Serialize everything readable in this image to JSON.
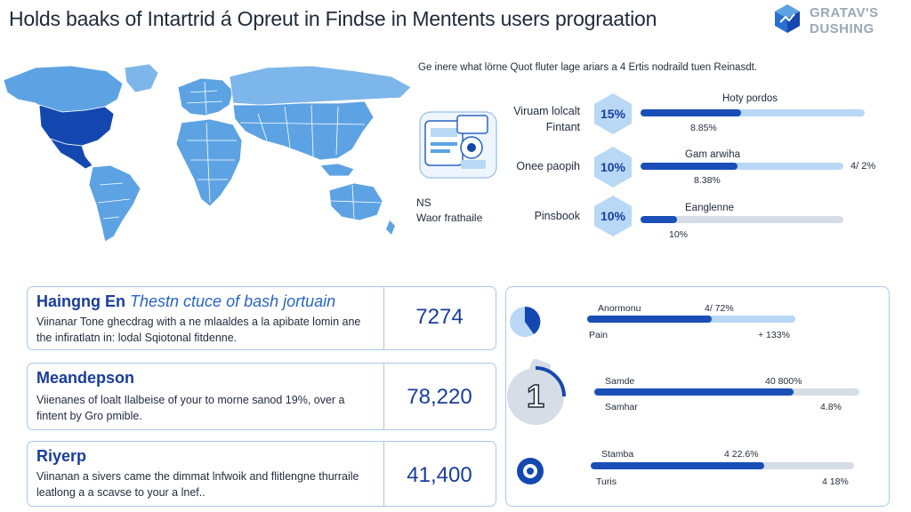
{
  "header": {
    "title": "Holds baaks of Intartrid á Opreut in Findse in Mentents users prograation",
    "logo_line1": "GRATAV'S",
    "logo_line2": "DUSHING"
  },
  "intro_text": "Ge inere what lörne Quot fluter lage ariars a 4 Ertis nodraild tuen Reinasdt.",
  "left_caption": {
    "line1": "NS",
    "line2": "Waor frathaile"
  },
  "stats": [
    {
      "label_line1": "Viruam lolcalt",
      "label_line2": "Fintant",
      "pct": "15%",
      "bar_title": "Hoty pordos",
      "bar_value": "8.85%",
      "fill": 0.45,
      "side": ""
    },
    {
      "label_line1": "Onee paopih",
      "label_line2": "",
      "pct": "10%",
      "bar_title": "Gam arwiha",
      "bar_value": "8.38%",
      "fill": 0.48,
      "side": "4/ 2%"
    },
    {
      "label_line1": "Pinsbook",
      "label_line2": "",
      "pct": "10%",
      "bar_title": "Eanglenne",
      "bar_value": "10%",
      "fill": 0.18,
      "side": ""
    }
  ],
  "cards": [
    {
      "title": "Haingng En",
      "title_italic": "Thestn ctuce of bash jortuain",
      "line1": "Viinanar Tone ghecdrag with a ne mlaaldes a la apibate lomin ane",
      "line2": "the infiratlatn in: lodal Sqiotonal fitdenne.",
      "number": "7274"
    },
    {
      "title": "Meandepson",
      "title_italic": "",
      "line1": "Viienanes of loalt Ilalbeise of your to morne sanod 19%, over a",
      "line2": "fintent by Gro pmible.",
      "number": "78,220"
    },
    {
      "title": "Riyerp",
      "title_italic": "",
      "line1": "Viinanan a sivers came the dimmat lnfwoik and flitlengne thurraile",
      "line2": "leatlong a a scavse to your a lnef..",
      "number": "41,400"
    }
  ],
  "panel": {
    "rows": [
      {
        "top_label": "Anormonu",
        "top_value": "4/ 72%",
        "bottom_label": "Pain",
        "bottom_value": "+ 133%",
        "fill": 0.6
      },
      {
        "top_label": "Samde",
        "top_value": "40 800%",
        "bottom_label": "Samhar",
        "bottom_value": "4.8%",
        "fill": 0.75
      },
      {
        "top_label": "Stamba",
        "top_value": "4 22.6%",
        "bottom_label": "Turis",
        "bottom_value": "4 18%",
        "fill": 0.66
      }
    ],
    "icon2_digit": "1"
  },
  "colors": {
    "accent": "#1a4fb8",
    "light": "#b8d8f5",
    "border": "#a9c8ec",
    "map_dark": "#1448b0",
    "map_light": "#5da3e3"
  }
}
